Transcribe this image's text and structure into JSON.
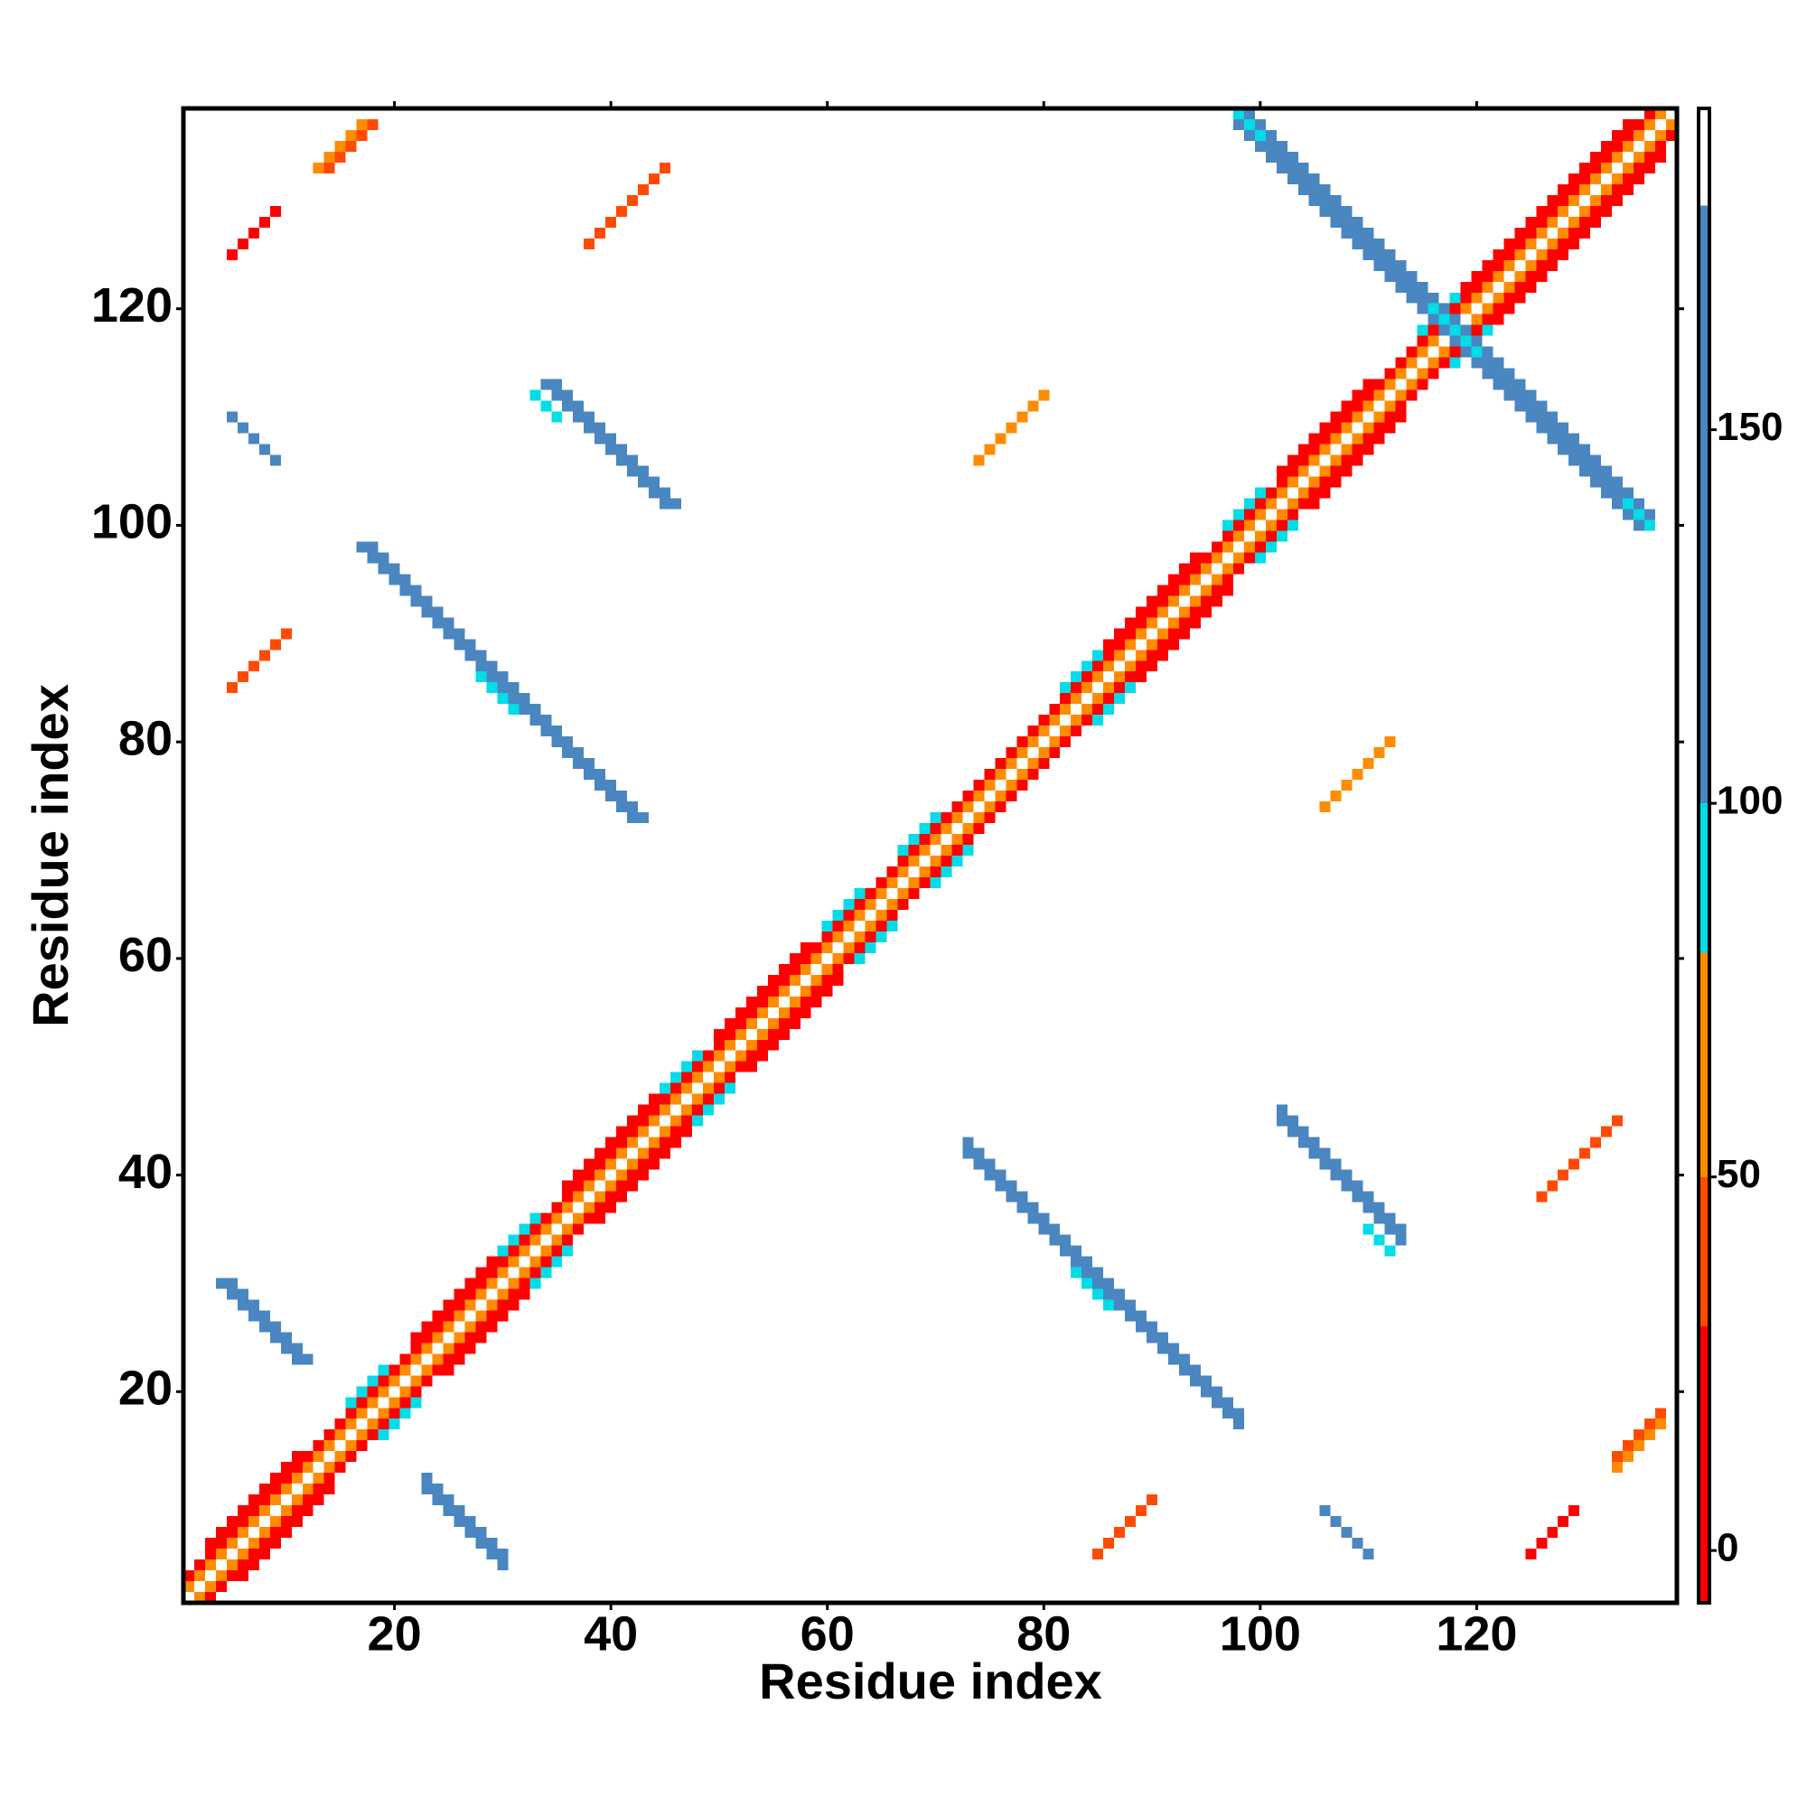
{
  "chart_data": {
    "type": "heatmap",
    "x_label": "Residue index",
    "y_label": "Residue index",
    "xlim": [
      0.5,
      138.5
    ],
    "ylim": [
      0.5,
      138.5
    ],
    "xticks": [
      20,
      40,
      60,
      80,
      100,
      120
    ],
    "yticks": [
      20,
      40,
      60,
      80,
      100,
      120
    ],
    "runs": {
      "x0": [
        1,
        2,
        1,
        3,
        3,
        6,
        22,
        25,
        36,
        39,
        50,
        53,
        86,
        89,
        102,
        105,
        119,
        122,
        16,
        19,
        30,
        33,
        45,
        48,
        60,
        63,
        67,
        70,
        82,
        85,
        97,
        100,
        115,
        118,
        98,
        99,
        98,
        98,
        134,
        116,
        34,
        35,
        33,
        102,
        102,
        110,
        17,
        18,
        28,
        73,
        73,
        83,
        4,
        5,
        23,
        23,
        5,
        106,
        13,
        14,
        133,
        133,
        5,
        125,
        38,
        126,
        5,
        85,
        74,
        106
      ],
      "y0": [
        2,
        1,
        3,
        1,
        6,
        3,
        25,
        22,
        39,
        36,
        53,
        50,
        89,
        86,
        105,
        102,
        122,
        119,
        19,
        16,
        33,
        30,
        48,
        45,
        63,
        60,
        70,
        67,
        85,
        82,
        100,
        97,
        118,
        115,
        138,
        138,
        137,
        138,
        102,
        120,
        113,
        113,
        112,
        45,
        46,
        35,
        98,
        98,
        86,
        42,
        43,
        31,
        30,
        30,
        11,
        12,
        110,
        9,
        133,
        133,
        13,
        14,
        125,
        5,
        126,
        38,
        85,
        5,
        106,
        74
      ],
      "x1": [
        137,
        138,
        136,
        138,
        11,
        14,
        30,
        33,
        44,
        47,
        58,
        61,
        94,
        97,
        110,
        113,
        134,
        137,
        19,
        22,
        33,
        36,
        48,
        51,
        63,
        66,
        70,
        73,
        85,
        88,
        100,
        103,
        118,
        121,
        136,
        136,
        135,
        100,
        136,
        120,
        45,
        46,
        35,
        113,
        113,
        112,
        42,
        43,
        31,
        98,
        98,
        86,
        11,
        12,
        30,
        30,
        9,
        110,
        17,
        18,
        137,
        137,
        9,
        129,
        45,
        133,
        10,
        90,
        80,
        112
      ],
      "y1": [
        138,
        137,
        138,
        136,
        14,
        11,
        33,
        30,
        47,
        44,
        61,
        58,
        97,
        94,
        113,
        110,
        137,
        134,
        22,
        19,
        36,
        33,
        51,
        48,
        66,
        63,
        73,
        70,
        88,
        85,
        103,
        100,
        121,
        118,
        100,
        101,
        100,
        136,
        100,
        116,
        102,
        102,
        110,
        34,
        35,
        33,
        73,
        73,
        83,
        17,
        18,
        28,
        23,
        23,
        4,
        5,
        106,
        5,
        137,
        137,
        17,
        18,
        129,
        9,
        133,
        45,
        90,
        10,
        112,
        80
      ],
      "values": [
        60,
        60,
        10,
        10,
        5,
        5,
        5,
        5,
        5,
        5,
        5,
        5,
        5,
        5,
        5,
        5,
        5,
        5,
        90,
        90,
        90,
        90,
        90,
        90,
        90,
        90,
        90,
        90,
        90,
        90,
        90,
        90,
        90,
        90,
        150,
        150,
        150,
        90,
        90,
        90,
        150,
        150,
        90,
        150,
        150,
        90,
        150,
        150,
        90,
        150,
        150,
        90,
        150,
        150,
        150,
        150,
        150,
        150,
        50,
        40,
        50,
        40,
        10,
        10,
        40,
        40,
        40,
        40,
        50,
        50
      ]
    },
    "colorbar": {
      "lim": [
        -7,
        193
      ],
      "ticks": [
        0,
        50,
        100,
        150
      ],
      "breaks": [
        -7,
        30,
        50,
        80,
        100,
        180,
        193
      ],
      "colors": [
        "#ff0000",
        "#ff4a00",
        "#ff8c00",
        "#00dde8",
        "#4a86c0",
        "#ffffff"
      ]
    }
  }
}
